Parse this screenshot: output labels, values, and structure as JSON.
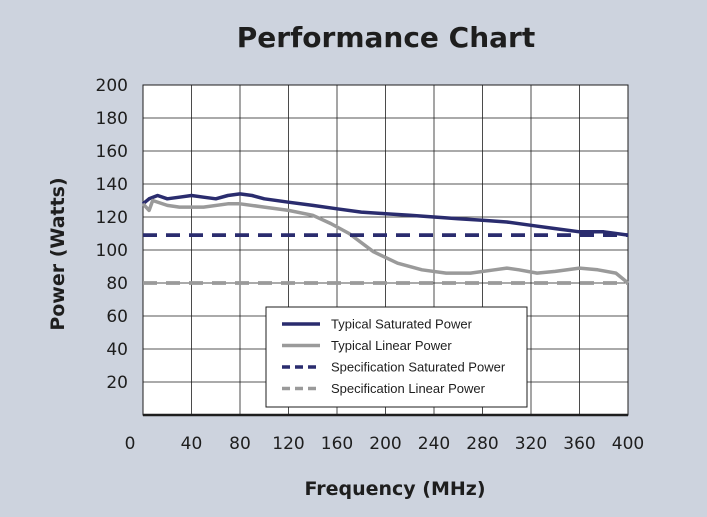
{
  "chart_data": {
    "type": "line",
    "title": "Performance Chart",
    "xlabel": "Frequency (MHz)",
    "ylabel": "Power (Watts)",
    "xlim": [
      0,
      400
    ],
    "ylim": [
      0,
      200
    ],
    "x_ticks": [
      0,
      40,
      80,
      120,
      160,
      200,
      240,
      280,
      320,
      360,
      400
    ],
    "y_ticks": [
      20,
      40,
      60,
      80,
      100,
      120,
      140,
      160,
      180,
      200
    ],
    "grid": true,
    "legend": "bottom-right",
    "series": [
      {
        "name": "Typical Saturated Power",
        "color": "#2a2c6e",
        "dash": "solid",
        "points": [
          [
            0,
            128
          ],
          [
            5,
            131
          ],
          [
            12,
            133
          ],
          [
            20,
            131
          ],
          [
            30,
            132
          ],
          [
            40,
            133
          ],
          [
            50,
            132
          ],
          [
            60,
            131
          ],
          [
            70,
            133
          ],
          [
            80,
            134
          ],
          [
            90,
            133
          ],
          [
            100,
            131
          ],
          [
            120,
            129
          ],
          [
            140,
            127
          ],
          [
            160,
            125
          ],
          [
            180,
            123
          ],
          [
            200,
            122
          ],
          [
            220,
            121
          ],
          [
            240,
            120
          ],
          [
            260,
            119
          ],
          [
            280,
            118
          ],
          [
            300,
            117
          ],
          [
            320,
            115
          ],
          [
            340,
            113
          ],
          [
            360,
            111
          ],
          [
            380,
            111
          ],
          [
            400,
            109
          ]
        ]
      },
      {
        "name": "Typical Linear Power",
        "color": "#9a9a9a",
        "dash": "solid",
        "points": [
          [
            0,
            128
          ],
          [
            5,
            124
          ],
          [
            8,
            130
          ],
          [
            20,
            127
          ],
          [
            30,
            126
          ],
          [
            50,
            126
          ],
          [
            70,
            128
          ],
          [
            80,
            128
          ],
          [
            100,
            126
          ],
          [
            120,
            124
          ],
          [
            140,
            121
          ],
          [
            155,
            116
          ],
          [
            170,
            110
          ],
          [
            190,
            99
          ],
          [
            210,
            92
          ],
          [
            230,
            88
          ],
          [
            250,
            86
          ],
          [
            270,
            86
          ],
          [
            290,
            88
          ],
          [
            300,
            89
          ],
          [
            310,
            88
          ],
          [
            325,
            86
          ],
          [
            340,
            87
          ],
          [
            360,
            89
          ],
          [
            375,
            88
          ],
          [
            390,
            86
          ],
          [
            400,
            80
          ]
        ]
      },
      {
        "name": "Specification Saturated Power",
        "color": "#2a2c6e",
        "dash": "dashed",
        "points": [
          [
            0,
            109
          ],
          [
            400,
            109
          ]
        ]
      },
      {
        "name": "Specification Linear Power",
        "color": "#9a9a9a",
        "dash": "dashed",
        "points": [
          [
            0,
            80
          ],
          [
            400,
            80
          ]
        ]
      }
    ]
  }
}
